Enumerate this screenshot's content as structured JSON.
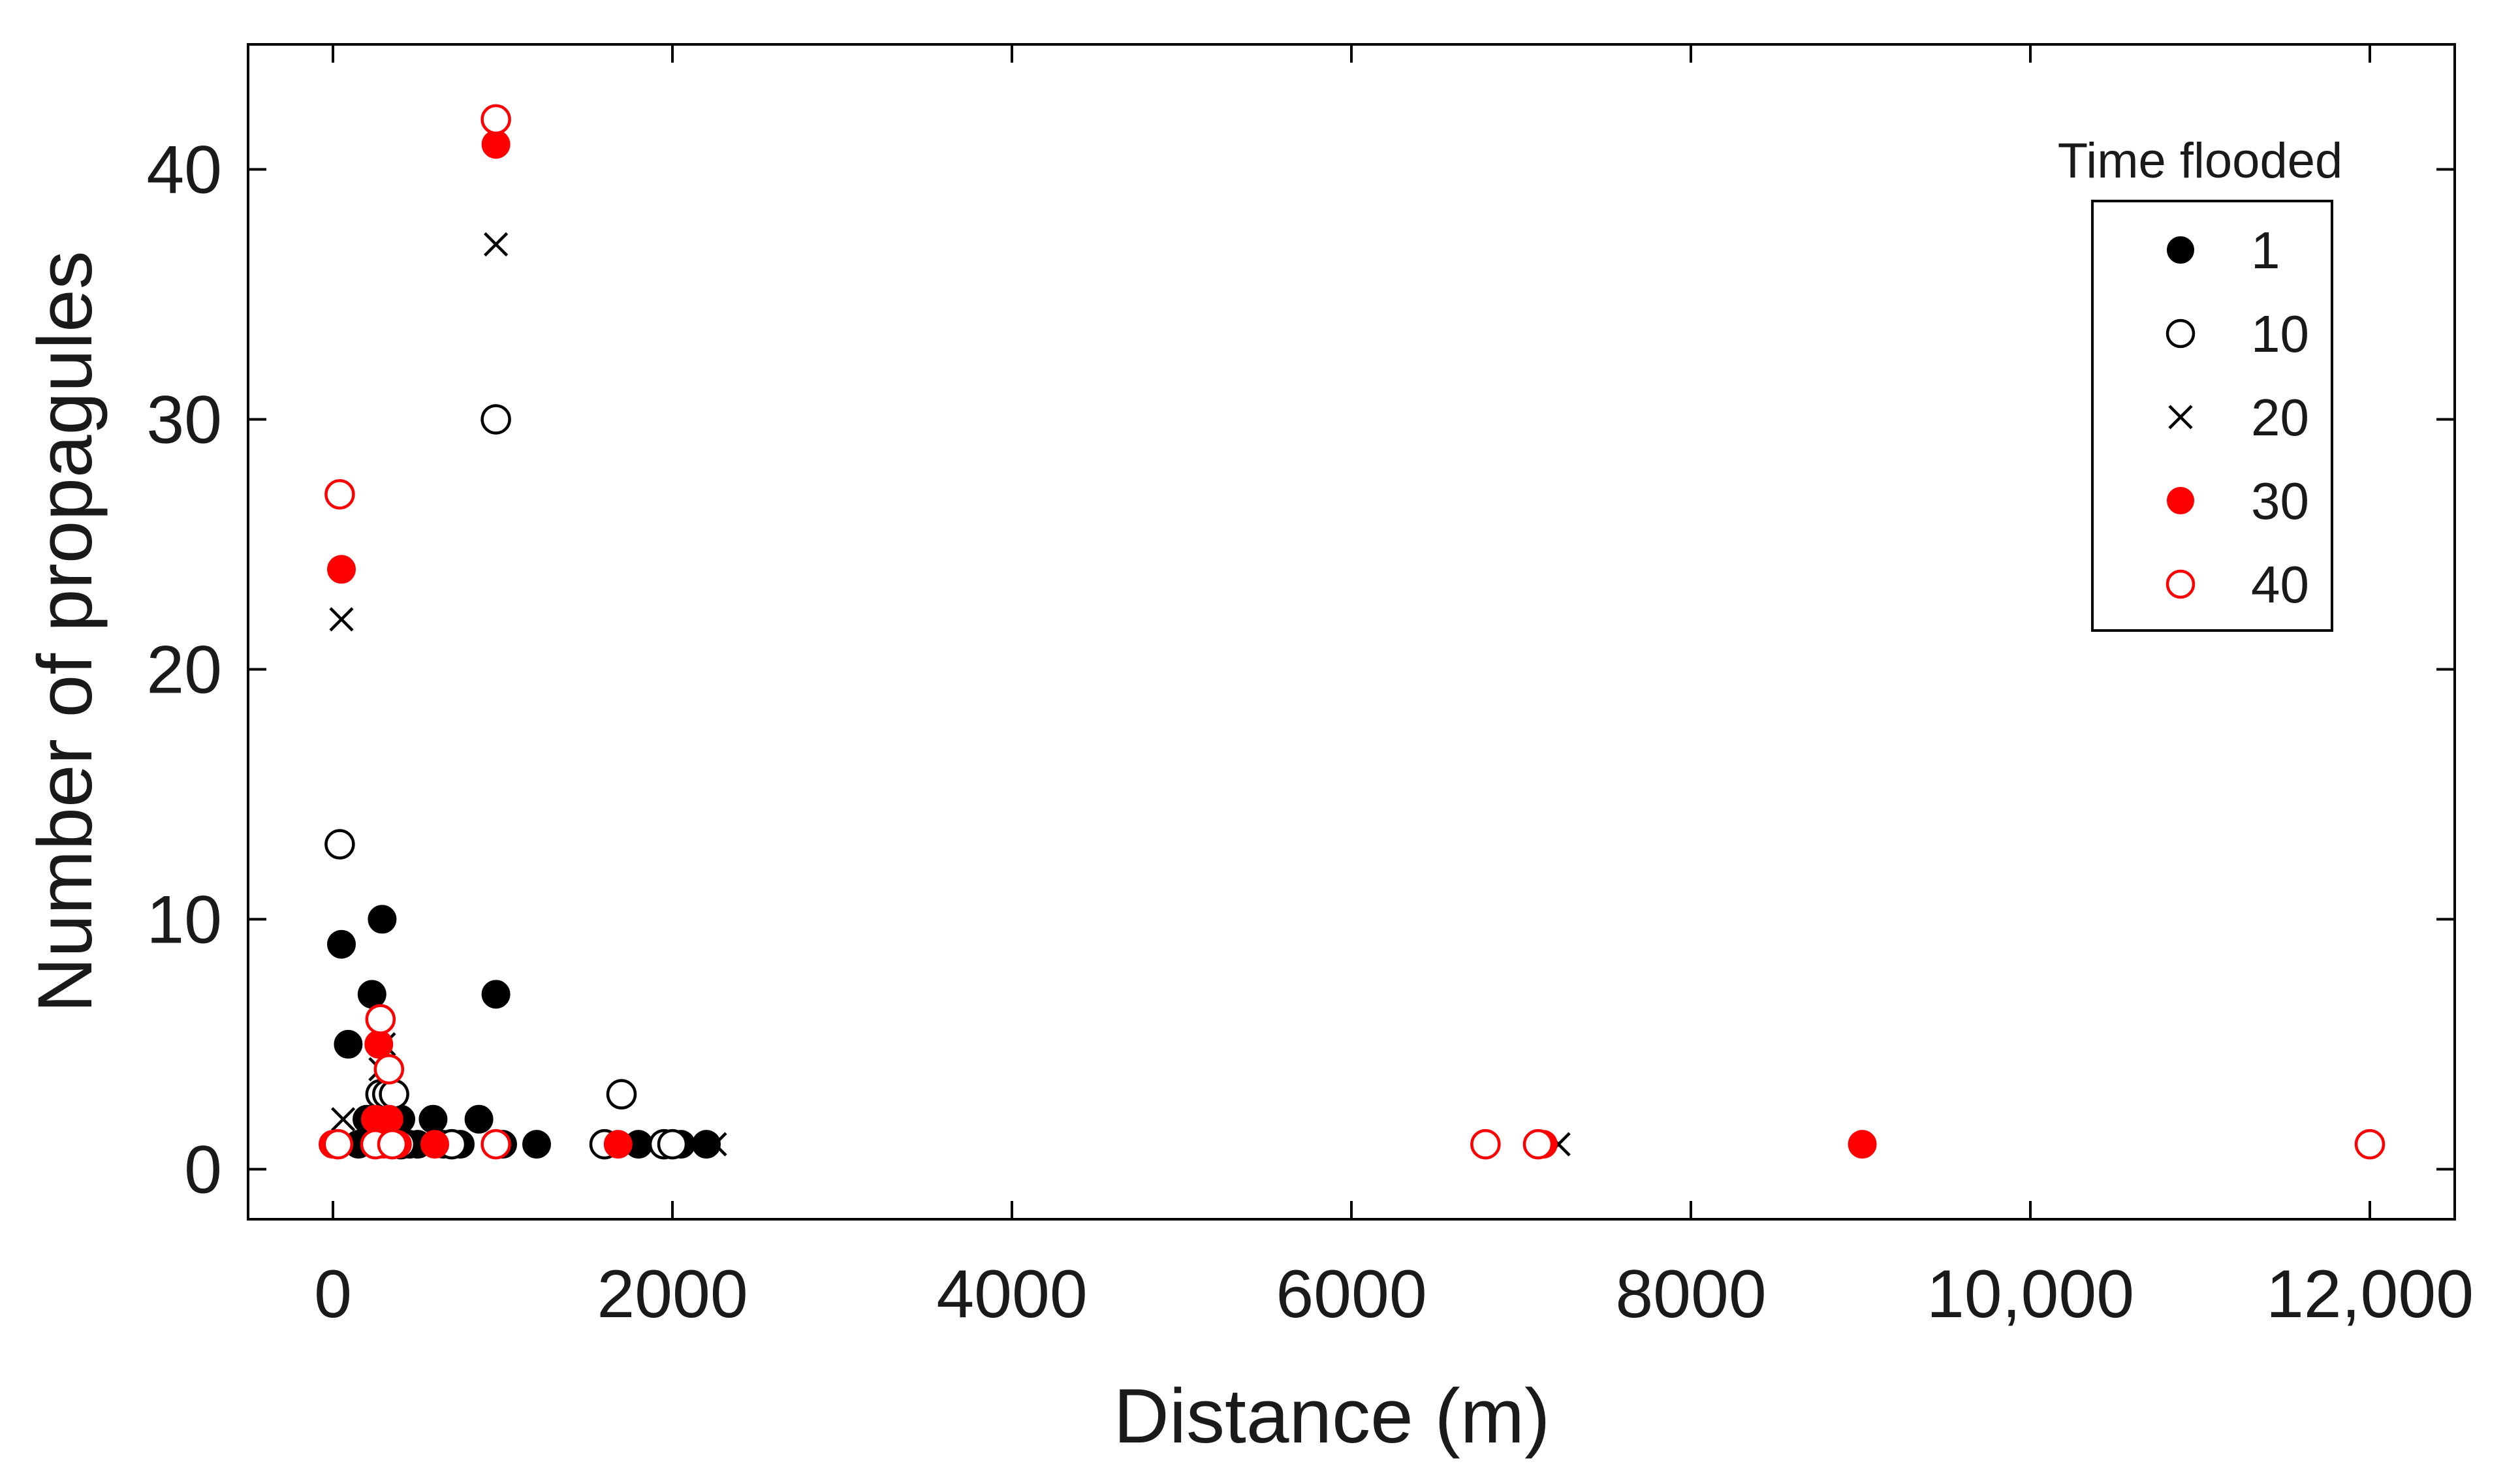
{
  "chart_data": {
    "type": "scatter",
    "xlabel": "Distance (m)",
    "ylabel": "Number of propagules",
    "xlim": [
      -500,
      12500
    ],
    "ylim": [
      -2,
      45
    ],
    "x_ticks": [
      0,
      2000,
      4000,
      6000,
      8000,
      10000,
      12000
    ],
    "x_tick_labels": [
      "0",
      "2000",
      "4000",
      "6000",
      "8000",
      "10,000",
      "12,000"
    ],
    "y_ticks": [
      0,
      10,
      20,
      30,
      40
    ],
    "y_tick_labels": [
      "0",
      "10",
      "20",
      "30",
      "40"
    ],
    "grid": false,
    "legend": {
      "title": "Time flooded",
      "position": "top-right"
    },
    "series": [
      {
        "name": "1",
        "marker": "filled-circle",
        "color": "#000000",
        "points": [
          [
            20,
            1
          ],
          [
            50,
            9
          ],
          [
            90,
            5
          ],
          [
            150,
            1
          ],
          [
            200,
            2
          ],
          [
            230,
            7
          ],
          [
            260,
            1
          ],
          [
            290,
            10
          ],
          [
            320,
            2
          ],
          [
            350,
            1
          ],
          [
            400,
            2
          ],
          [
            450,
            1
          ],
          [
            500,
            1
          ],
          [
            590,
            2
          ],
          [
            650,
            1
          ],
          [
            750,
            1
          ],
          [
            860,
            2
          ],
          [
            960,
            7
          ],
          [
            1000,
            1
          ],
          [
            1200,
            1
          ],
          [
            1800,
            1
          ],
          [
            2000,
            1
          ],
          [
            2050,
            1
          ],
          [
            2200,
            1
          ]
        ]
      },
      {
        "name": "10",
        "marker": "open-circle",
        "color": "#000000",
        "points": [
          [
            40,
            13
          ],
          [
            280,
            3
          ],
          [
            320,
            3
          ],
          [
            360,
            3
          ],
          [
            400,
            1
          ],
          [
            700,
            1
          ],
          [
            960,
            30
          ],
          [
            1600,
            1
          ],
          [
            1700,
            3
          ],
          [
            1950,
            1
          ],
          [
            2000,
            1
          ]
        ]
      },
      {
        "name": "20",
        "marker": "x",
        "color": "#000000",
        "points": [
          [
            50,
            22
          ],
          [
            60,
            2
          ],
          [
            280,
            4
          ],
          [
            300,
            5
          ],
          [
            960,
            37
          ],
          [
            2250,
            1
          ],
          [
            7220,
            1
          ]
        ]
      },
      {
        "name": "30",
        "marker": "filled-circle",
        "color": "#ff0000",
        "points": [
          [
            0,
            1
          ],
          [
            50,
            24
          ],
          [
            270,
            5
          ],
          [
            250,
            2
          ],
          [
            300,
            1
          ],
          [
            330,
            2
          ],
          [
            380,
            1
          ],
          [
            600,
            1
          ],
          [
            960,
            41
          ],
          [
            1680,
            1
          ],
          [
            7130,
            1
          ],
          [
            9010,
            1
          ]
        ]
      },
      {
        "name": "40",
        "marker": "open-circle",
        "color": "#ff0000",
        "points": [
          [
            30,
            1
          ],
          [
            40,
            27
          ],
          [
            250,
            1
          ],
          [
            280,
            6
          ],
          [
            330,
            4
          ],
          [
            350,
            1
          ],
          [
            960,
            42
          ],
          [
            960,
            1
          ],
          [
            6790,
            1
          ],
          [
            7100,
            1
          ],
          [
            12000,
            1
          ]
        ]
      }
    ]
  }
}
